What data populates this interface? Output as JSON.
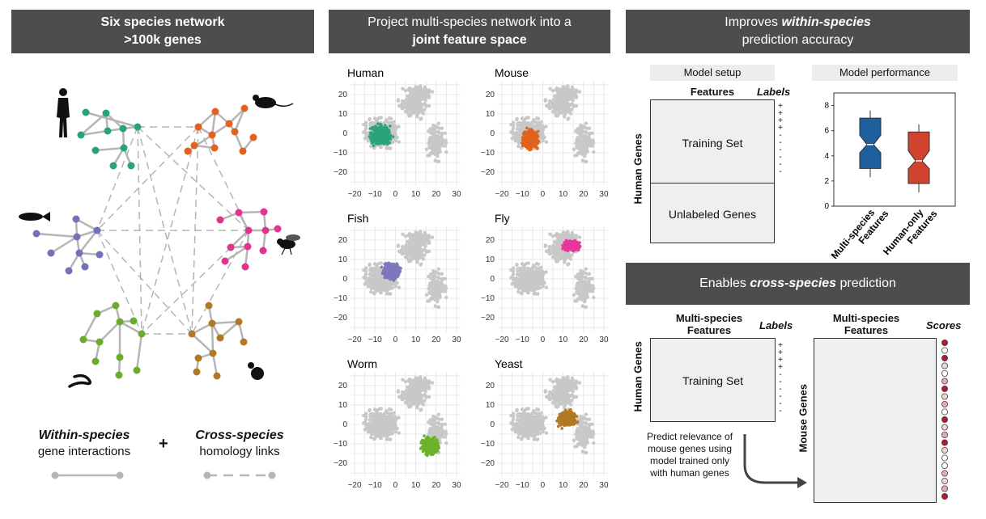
{
  "panel1": {
    "banner_line1": "Six species network",
    "banner_line2": ">100k genes",
    "legend_within_title": "Within-species",
    "legend_within_sub": "gene interactions",
    "legend_plus": "+",
    "legend_cross_title": "Cross-species",
    "legend_cross_sub": "homology links",
    "colors": {
      "human": "#2aa37a",
      "mouse": "#e0621c",
      "fish": "#7272b8",
      "fly": "#e0358f",
      "worm": "#6cab2c",
      "yeast": "#b07a25",
      "edge": "#b5b5b5"
    }
  },
  "panel2": {
    "banner_line1": "Project multi-species network into a",
    "banner_line2": "joint feature space",
    "plots": [
      {
        "name": "Human",
        "color": "#2aa37a"
      },
      {
        "name": "Mouse",
        "color": "#e0621c"
      },
      {
        "name": "Fish",
        "color": "#7d78bd"
      },
      {
        "name": "Fly",
        "color": "#e8369a"
      },
      {
        "name": "Worm",
        "color": "#6cb22a"
      },
      {
        "name": "Yeast",
        "color": "#b07a25"
      }
    ],
    "x_ticks": [
      "−20",
      "−10",
      "0",
      "10",
      "20",
      "30"
    ],
    "y_ticks": [
      "20",
      "10",
      "0",
      "−10",
      "−20"
    ]
  },
  "panel3": {
    "banner_pre": "Improves ",
    "banner_em": "within-species",
    "banner_line2": "prediction accuracy",
    "model_setup": "Model setup",
    "features": "Features",
    "labels": "Labels",
    "training_set": "Training Set",
    "unlabeled_genes": "Unlabeled Genes",
    "human_genes": "Human Genes",
    "model_performance": "Model performance",
    "y_ticks": [
      "8",
      "6",
      "4",
      "2",
      "0"
    ],
    "x_labels": [
      "Multi-species Features",
      "Human-only Features"
    ],
    "colors": {
      "multi": "#1f5f9e",
      "human_only": "#d0432e"
    }
  },
  "panel4": {
    "banner_pre": "Enables ",
    "banner_em": "cross-species",
    "banner_post": " prediction",
    "multi_features": "Multi-species Features",
    "labels": "Labels",
    "scores": "Scores",
    "training_set": "Training Set",
    "human_genes": "Human Genes",
    "mouse_genes": "Mouse Genes",
    "predict_text": "Predict relevance of mouse genes using model trained only with human genes"
  },
  "chart_data": {
    "type": "box",
    "title": "Model performance",
    "categories": [
      "Multi-species Features",
      "Human-only Features"
    ],
    "series": [
      {
        "name": "Multi-species Features",
        "min": 2.3,
        "q1": 3.0,
        "median": 4.9,
        "q3": 7.0,
        "max": 7.6
      },
      {
        "name": "Human-only Features",
        "min": 1.1,
        "q1": 1.8,
        "median": 3.6,
        "q3": 5.9,
        "max": 6.5
      }
    ],
    "ylim": [
      0,
      9
    ]
  }
}
